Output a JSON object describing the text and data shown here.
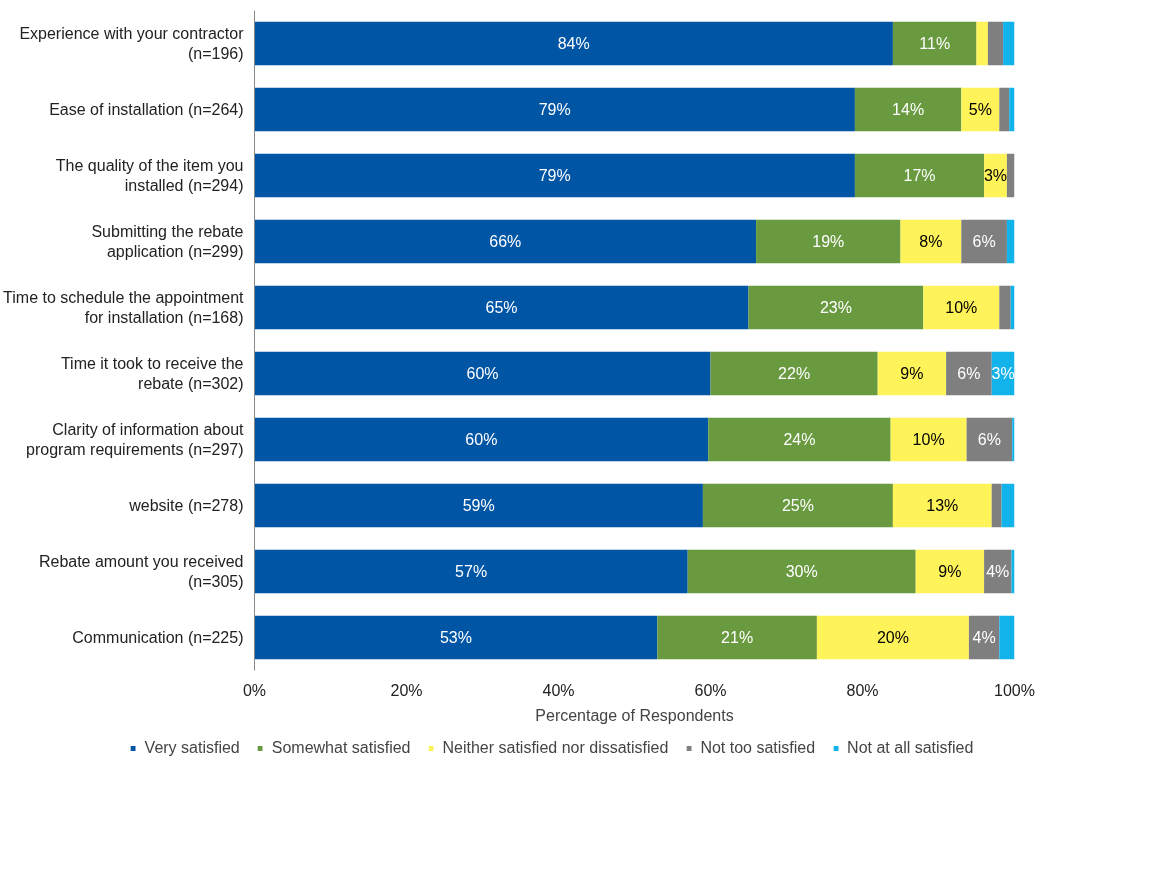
{
  "chart_data": {
    "type": "bar",
    "orientation": "horizontal",
    "stacked": true,
    "xlabel": "Percentage of Respondents",
    "categories": [
      "Experience with your contractor (n=196)",
      "Ease of installation (n=264)",
      "The quality of the item you installed (n=294)",
      "Submitting the rebate application (n=299)",
      "Time to schedule the appointment for installation (n=168)",
      "Time it took to receive the rebate (n=302)",
      "Clarity of information about program requirements (n=297)",
      "website (n=278)",
      "Rebate amount you received (n=305)",
      "Communication (n=225)"
    ],
    "series": [
      {
        "name": "Very satisfied",
        "color": "#0055a5",
        "values": [
          84,
          79,
          79,
          66,
          65,
          60,
          59.7,
          59,
          57,
          53
        ],
        "value_labels": [
          "84%",
          "79%",
          "79%",
          "66%",
          "65%",
          "60%",
          "60%",
          "59%",
          "57%",
          "53%"
        ]
      },
      {
        "name": "Somewhat satisfied",
        "color": "#6a9a3f",
        "values": [
          11,
          14,
          17,
          19,
          23,
          22,
          24,
          25,
          30,
          21
        ],
        "value_labels": [
          "11%",
          "14%",
          "17%",
          "19%",
          "23%",
          "22%",
          "24%",
          "25%",
          "30%",
          "21%"
        ]
      },
      {
        "name": "Neither satisfied nor dissatisfied",
        "color": "#fff35a",
        "values": [
          1.5,
          5,
          3,
          8,
          10,
          9,
          10,
          13,
          9,
          20
        ],
        "value_labels": [
          null,
          "5%",
          "3%",
          "8%",
          "10%",
          "9%",
          "10%",
          "13%",
          "9%",
          "20%"
        ]
      },
      {
        "name": "Not too satisfied",
        "color": "#7f7f7f",
        "values": [
          2,
          1.3,
          1,
          6,
          1.5,
          6,
          6,
          1.3,
          3.6,
          4
        ],
        "value_labels": [
          null,
          null,
          null,
          "6%",
          null,
          "6%",
          "6%",
          null,
          "4%",
          "4%"
        ]
      },
      {
        "name": "Not at all satisfied",
        "color": "#12b2ea",
        "values": [
          1.5,
          0.7,
          0,
          1,
          0.5,
          3,
          0.3,
          1.7,
          0.4,
          2
        ],
        "value_labels": [
          null,
          null,
          null,
          null,
          null,
          "3%",
          null,
          null,
          null,
          null
        ]
      }
    ],
    "xlim": [
      0,
      100
    ],
    "xticks": [
      {
        "value": 0,
        "label": "0%"
      },
      {
        "value": 20,
        "label": "20%"
      },
      {
        "value": 40,
        "label": "40%"
      },
      {
        "value": 60,
        "label": "60%"
      },
      {
        "value": 80,
        "label": "80%"
      },
      {
        "value": 100,
        "label": "100%"
      }
    ],
    "grid": false,
    "legend": "bottom"
  }
}
